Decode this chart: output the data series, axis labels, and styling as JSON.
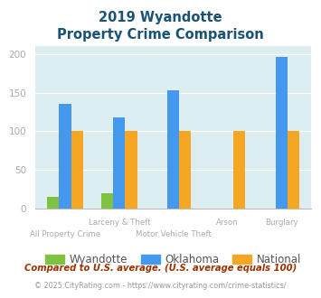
{
  "title_line1": "2019 Wyandotte",
  "title_line2": "Property Crime Comparison",
  "categories": [
    "All Property Crime",
    "Larceny & Theft",
    "Motor Vehicle Theft",
    "Arson",
    "Burglary"
  ],
  "wyandotte": [
    15,
    20,
    0,
    0,
    0
  ],
  "oklahoma": [
    135,
    118,
    153,
    0,
    196
  ],
  "national": [
    100,
    100,
    100,
    100,
    100
  ],
  "color_wyandotte": "#7fc241",
  "color_oklahoma": "#4499ee",
  "color_national": "#f5a623",
  "background_color": "#ddeef0",
  "ylim": [
    0,
    210
  ],
  "yticks": [
    0,
    50,
    100,
    150,
    200
  ],
  "labels_row1": [
    [
      1,
      "Larceny & Theft"
    ],
    [
      3,
      "Arson"
    ],
    [
      4,
      "Burglary"
    ]
  ],
  "labels_row2": [
    [
      0,
      "All Property Crime"
    ],
    [
      2,
      "Motor Vehicle Theft"
    ]
  ],
  "footnote1": "Compared to U.S. average. (U.S. average equals 100)",
  "footnote2": "© 2025 CityRating.com - https://www.cityrating.com/crime-statistics/",
  "title_color": "#1a5276",
  "footnote1_color": "#993300",
  "footnote2_color": "#999999",
  "tick_label_color": "#aaaaaa",
  "legend_label_color": "#555555"
}
